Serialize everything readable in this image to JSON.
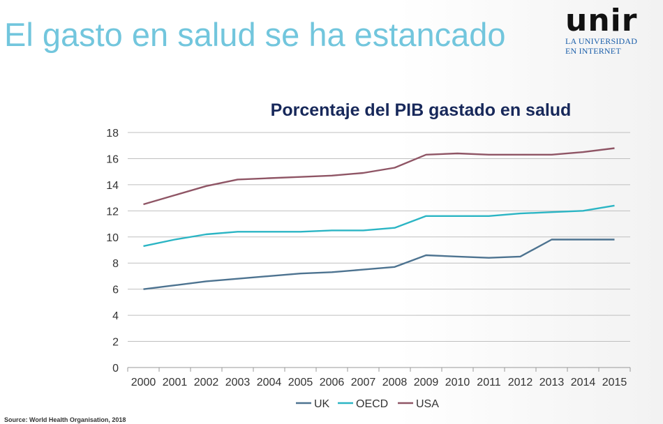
{
  "slide": {
    "title": "El gasto en salud se ha estancado",
    "source": "Source: World Health Organisation, 2018"
  },
  "logo": {
    "mark": "unir",
    "line1": "LA UNIVERSIDAD",
    "line2": "EN INTERNET"
  },
  "colors": {
    "title": "#72c6dd",
    "chart_title": "#17285a",
    "UK": "#4d7390",
    "OECD": "#2bb5c4",
    "USA": "#8f5565",
    "grid": "#bfbfbf"
  },
  "chart_data": {
    "type": "line",
    "title": "Porcentaje del PIB gastado en salud",
    "x": [
      "2000",
      "2001",
      "2002",
      "2003",
      "2004",
      "2005",
      "2006",
      "2007",
      "2008",
      "2009",
      "2010",
      "2011",
      "2012",
      "2013",
      "2014",
      "2015"
    ],
    "ylim": [
      0,
      18
    ],
    "yticks": [
      0,
      2,
      4,
      6,
      8,
      10,
      12,
      14,
      16,
      18
    ],
    "grid": true,
    "legend": "bottom",
    "series": [
      {
        "name": "UK",
        "values": [
          6.0,
          6.3,
          6.6,
          6.8,
          7.0,
          7.2,
          7.3,
          7.5,
          7.7,
          8.6,
          8.5,
          8.4,
          8.5,
          9.8,
          9.8,
          9.8
        ]
      },
      {
        "name": "OECD",
        "values": [
          9.3,
          9.8,
          10.2,
          10.4,
          10.4,
          10.4,
          10.5,
          10.5,
          10.7,
          11.6,
          11.6,
          11.6,
          11.8,
          11.9,
          12.0,
          12.4
        ]
      },
      {
        "name": "USA",
        "values": [
          12.5,
          13.2,
          13.9,
          14.4,
          14.5,
          14.6,
          14.7,
          14.9,
          15.3,
          16.3,
          16.4,
          16.3,
          16.3,
          16.3,
          16.5,
          16.8
        ]
      }
    ]
  }
}
